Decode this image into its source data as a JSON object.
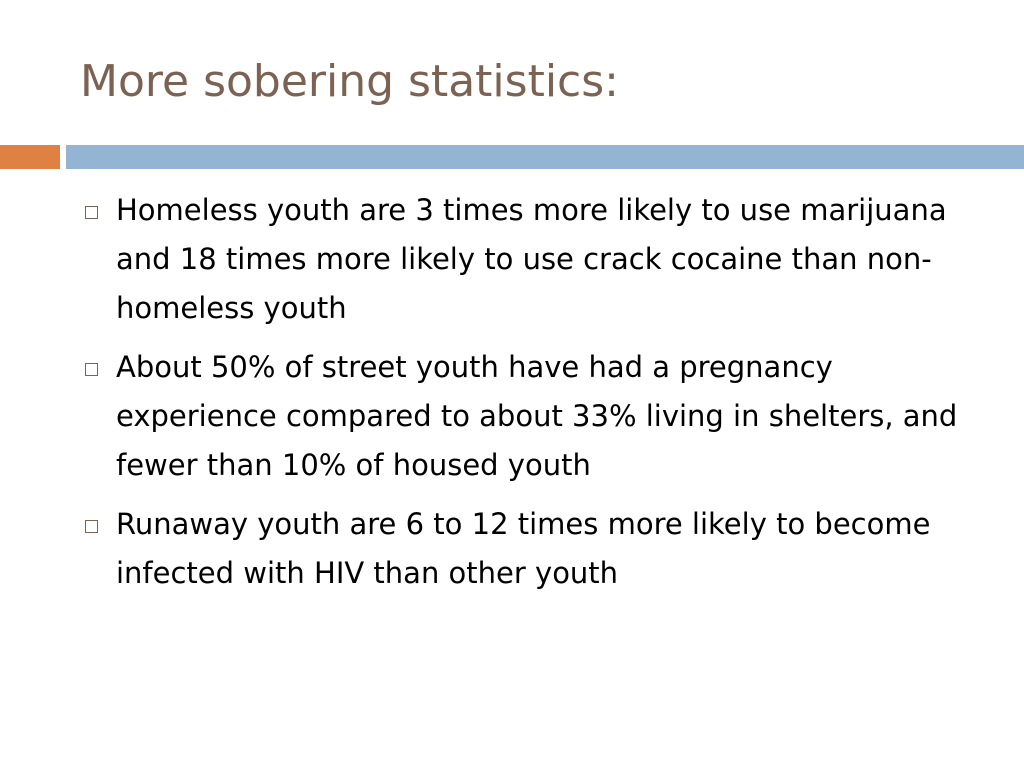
{
  "slide": {
    "title": "More sobering statistics:",
    "colors": {
      "title": "#7b6253",
      "accent_orange": "#df8143",
      "accent_blue": "#93b5d3",
      "text": "#000000"
    },
    "bullets": [
      {
        "text": "Homeless youth are 3 times more likely to use marijuana and 18 times more likely to use crack cocaine than non-homeless youth"
      },
      {
        "text": "About 50% of street youth have had a pregnancy experience compared to about 33% living in shelters, and fewer than 10% of housed youth"
      },
      {
        "text": "Runaway youth are 6 to 12 times more likely to become infected with HIV than other youth"
      }
    ],
    "bullet_icon": "hollow-square-icon"
  }
}
